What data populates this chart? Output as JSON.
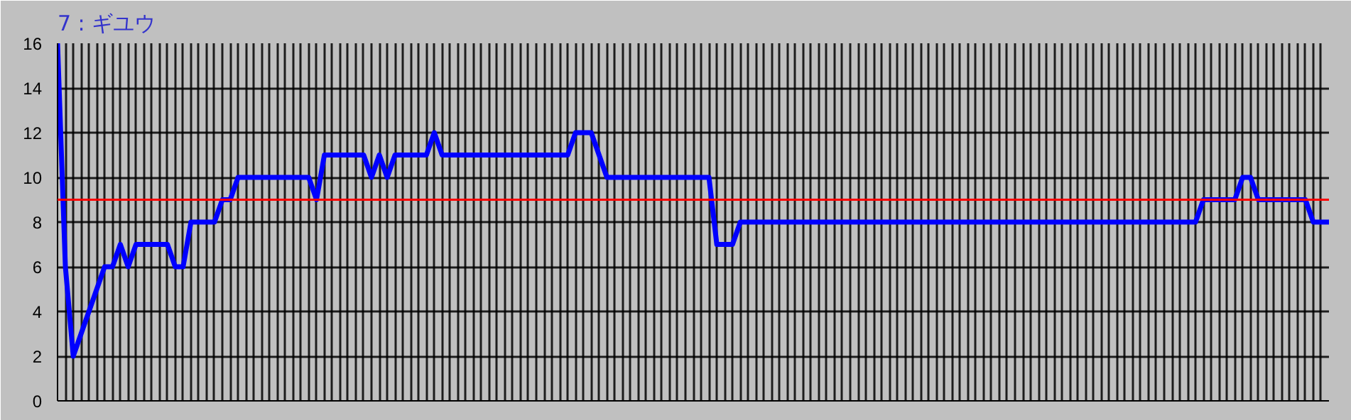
{
  "chart_data": {
    "type": "line",
    "title": "7 : ギユウ",
    "categories": [
      null,
      null,
      null,
      null,
      null,
      null,
      null,
      null,
      null,
      null,
      null,
      null,
      null,
      null,
      null,
      null,
      null,
      null,
      null,
      null,
      null,
      null,
      null,
      null,
      null,
      null,
      null,
      null,
      null,
      null,
      null,
      null,
      null,
      null,
      null,
      null,
      null,
      null,
      null,
      null,
      null,
      null,
      null,
      null,
      null,
      null,
      null,
      null,
      null,
      null,
      null,
      null,
      null,
      null,
      null,
      null,
      null,
      null,
      null,
      null,
      null,
      null,
      null,
      null,
      null,
      null,
      null,
      null,
      null,
      null,
      null,
      null,
      null,
      null,
      null,
      null,
      null,
      null,
      null,
      null,
      null,
      null,
      null,
      null,
      null,
      null,
      null,
      null,
      null,
      null,
      null,
      null,
      null,
      null,
      null,
      null,
      null,
      null,
      null,
      null,
      null,
      null,
      null,
      null,
      null,
      null,
      null,
      null,
      null,
      null,
      null,
      null,
      null,
      null,
      null,
      null,
      null,
      null,
      null,
      null,
      null,
      null,
      null,
      null,
      null,
      null,
      null,
      null,
      null,
      null,
      null,
      null,
      null,
      null,
      null,
      null,
      null,
      null,
      null,
      null,
      null,
      null,
      null,
      null,
      null,
      null,
      null,
      null,
      null,
      null,
      null,
      null,
      null,
      null,
      null,
      null,
      null,
      null,
      null,
      null,
      null,
      null,
      null
    ],
    "ylim": [
      0,
      16
    ],
    "yticks": [
      0,
      2,
      4,
      6,
      8,
      10,
      12,
      14,
      16
    ],
    "tick_labels": "y",
    "grid": true,
    "marker": "none",
    "line_style": "solid",
    "ref_lines": [
      {
        "axis": "y",
        "value": 9,
        "color": "#ff0000"
      }
    ],
    "series": [
      {
        "color": "#0000ff",
        "values": [
          16,
          6,
          2,
          3,
          4,
          5,
          6,
          6,
          7,
          6,
          7,
          7,
          7,
          7,
          7,
          6,
          6,
          8,
          8,
          8,
          8,
          9,
          9,
          10,
          10,
          10,
          10,
          10,
          10,
          10,
          10,
          10,
          10,
          9,
          11,
          11,
          11,
          11,
          11,
          11,
          10,
          11,
          10,
          11,
          11,
          11,
          11,
          11,
          12,
          11,
          11,
          11,
          11,
          11,
          11,
          11,
          11,
          11,
          11,
          11,
          11,
          11,
          11,
          11,
          11,
          11,
          12,
          12,
          12,
          11,
          10,
          10,
          10,
          10,
          10,
          10,
          10,
          10,
          10,
          10,
          10,
          10,
          10,
          10,
          7,
          7,
          7,
          8,
          8,
          8,
          8,
          8,
          8,
          8,
          8,
          8,
          8,
          8,
          8,
          8,
          8,
          8,
          8,
          8,
          8,
          8,
          8,
          8,
          8,
          8,
          8,
          8,
          8,
          8,
          8,
          8,
          8,
          8,
          8,
          8,
          8,
          8,
          8,
          8,
          8,
          8,
          8,
          8,
          8,
          8,
          8,
          8,
          8,
          8,
          8,
          8,
          8,
          8,
          8,
          8,
          8,
          8,
          8,
          8,
          8,
          8,
          9,
          9,
          9,
          9,
          9,
          10,
          10,
          9,
          9,
          9,
          9,
          9,
          9,
          9,
          8,
          8,
          8
        ]
      }
    ]
  }
}
